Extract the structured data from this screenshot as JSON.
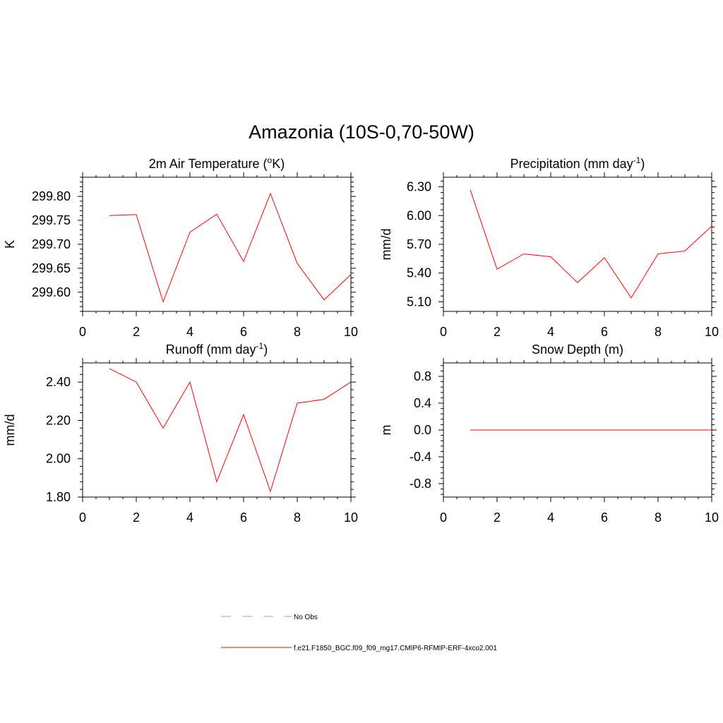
{
  "figure": {
    "title": "Amazonia (10S-0,70-50W)",
    "series_color": "#ff0000",
    "obs_color": "#aaaaee"
  },
  "legend": {
    "placement": "bottom-center",
    "entries": [
      {
        "label": "No Obs",
        "style": "dashed",
        "color": "#aaaaee"
      },
      {
        "label": "f.e21.F1850_BGC.f09_f09_mg17.CMIP6-RFMIP-ERF-4xco2.001",
        "style": "solid",
        "color": "#ff0000"
      }
    ]
  },
  "chart_data": [
    {
      "type": "line",
      "title_main": "2m Air Temperature (",
      "title_sup": "o",
      "title_post": "K)",
      "ylabel": "K",
      "xlim": [
        0,
        10
      ],
      "ylim": [
        299.56,
        299.84
      ],
      "xticks": [
        0,
        2,
        4,
        6,
        8,
        10
      ],
      "yticks": [
        299.6,
        299.65,
        299.7,
        299.75,
        299.8
      ],
      "ytick_labels": [
        "299.60",
        "299.65",
        "299.70",
        "299.75",
        "299.80"
      ],
      "series": [
        {
          "x": [
            1,
            2,
            3,
            4,
            5,
            6,
            7,
            8,
            9,
            10
          ],
          "values": [
            299.76,
            299.762,
            299.58,
            299.725,
            299.763,
            299.664,
            299.806,
            299.66,
            299.584,
            299.637
          ]
        }
      ]
    },
    {
      "type": "line",
      "title_main": "Precipitation (mm day",
      "title_sup": "-1",
      "title_post": ")",
      "ylabel": "mm/d",
      "xlim": [
        0,
        10
      ],
      "ylim": [
        5.0,
        6.4
      ],
      "xticks": [
        0,
        2,
        4,
        6,
        8,
        10
      ],
      "yticks": [
        5.1,
        5.4,
        5.7,
        6.0,
        6.3
      ],
      "ytick_labels": [
        "5.10",
        "5.40",
        "5.70",
        "6.00",
        "6.30"
      ],
      "series": [
        {
          "x": [
            1,
            2,
            3,
            4,
            5,
            6,
            7,
            8,
            9,
            10
          ],
          "values": [
            6.27,
            5.44,
            5.6,
            5.57,
            5.3,
            5.56,
            5.14,
            5.6,
            5.63,
            5.89
          ]
        }
      ]
    },
    {
      "type": "line",
      "title_main": "Runoff (mm day",
      "title_sup": "-1",
      "title_post": ")",
      "ylabel": "mm/d",
      "xlim": [
        0,
        10
      ],
      "ylim": [
        1.8,
        2.5
      ],
      "xticks": [
        0,
        2,
        4,
        6,
        8,
        10
      ],
      "yticks": [
        1.8,
        2.0,
        2.2,
        2.4
      ],
      "ytick_labels": [
        "1.80",
        "2.00",
        "2.20",
        "2.40"
      ],
      "series": [
        {
          "x": [
            1,
            2,
            3,
            4,
            5,
            6,
            7,
            8,
            9,
            10
          ],
          "values": [
            2.47,
            2.4,
            2.16,
            2.4,
            1.88,
            2.23,
            1.83,
            2.29,
            2.31,
            2.4
          ]
        }
      ]
    },
    {
      "type": "line",
      "title_main": "Snow Depth (m)",
      "title_sup": "",
      "title_post": "",
      "ylabel": "m",
      "xlim": [
        0,
        10
      ],
      "ylim": [
        -1.0,
        1.0
      ],
      "xticks": [
        0,
        2,
        4,
        6,
        8,
        10
      ],
      "yticks": [
        -0.8,
        -0.4,
        0.0,
        0.4,
        0.8
      ],
      "ytick_labels": [
        "-0.8",
        "-0.4",
        "0.0",
        "0.4",
        "0.8"
      ],
      "series": [
        {
          "x": [
            1,
            2,
            3,
            4,
            5,
            6,
            7,
            8,
            9,
            10
          ],
          "values": [
            0,
            0,
            0,
            0,
            0,
            0,
            0,
            0,
            0,
            0
          ]
        }
      ]
    }
  ]
}
